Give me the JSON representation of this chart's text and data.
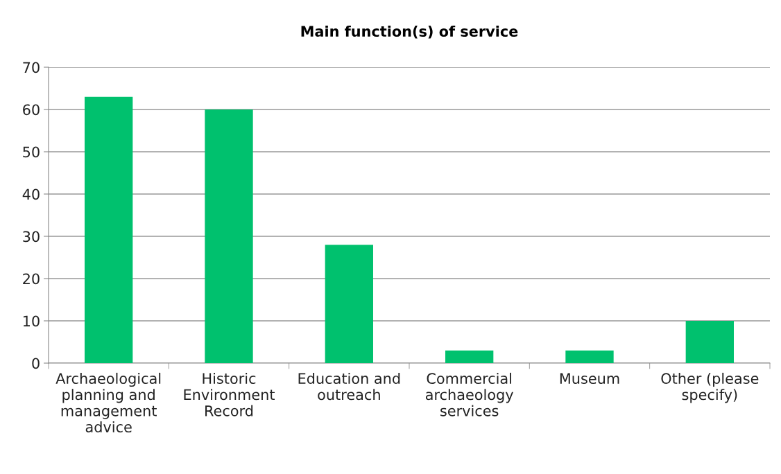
{
  "chart_data": {
    "type": "bar",
    "title": "Main function(s) of service",
    "categories": [
      "Archaeological planning and management advice",
      "Historic Environment Record",
      "Education and outreach",
      "Commercial archaeology services",
      "Museum",
      "Other (please specify)"
    ],
    "values": [
      63,
      60,
      28,
      3,
      3,
      10
    ],
    "color": "#00c16e",
    "ylim": [
      0,
      70
    ],
    "yticks": [
      0,
      10,
      20,
      30,
      40,
      50,
      60,
      70
    ],
    "grid": "y",
    "legend": false
  }
}
